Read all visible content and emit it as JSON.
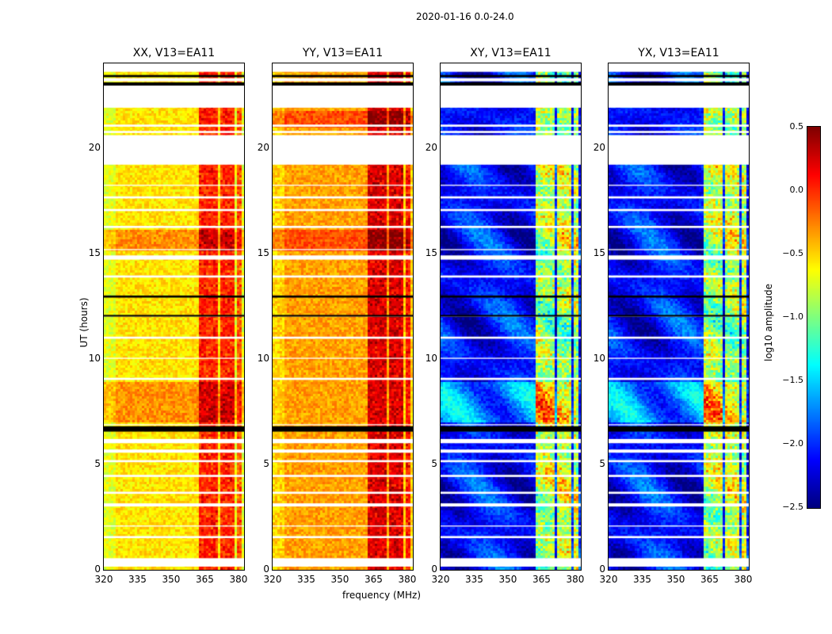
{
  "chart_data": {
    "type": "heatmap",
    "suptitle": "2020-01-16 0.0-24.0",
    "xlabel": "frequency (MHz)",
    "ylabel": "UT (hours)",
    "xlim": [
      320,
      382.5
    ],
    "ylim": [
      0,
      24
    ],
    "xticks": [
      "320",
      "335",
      "350",
      "365",
      "380"
    ],
    "yticks": [
      "0",
      "5",
      "10",
      "15",
      "20"
    ],
    "colorbar": {
      "label": "log10 amplitude",
      "range": [
        -2.5,
        0.5
      ],
      "ticks": [
        "0.5",
        "0.0",
        "−0.5",
        "−1.0",
        "−1.5",
        "−2.0",
        "−2.5"
      ],
      "colormap": "jet"
    },
    "rfi_bands_mhz": [
      [
        362,
        366
      ],
      [
        366.5,
        370
      ],
      [
        371,
        374.5
      ],
      [
        375,
        378
      ],
      [
        378.5,
        381
      ]
    ],
    "white_gaps_hours": [
      [
        0.15,
        0.55
      ],
      [
        1.5,
        1.6
      ],
      [
        2.05,
        2.1
      ],
      [
        3.0,
        3.15
      ],
      [
        3.6,
        3.7
      ],
      [
        4.4,
        4.5
      ],
      [
        5.1,
        5.2
      ],
      [
        5.55,
        5.7
      ],
      [
        6.0,
        6.2
      ],
      [
        6.85,
        6.9
      ],
      [
        9.0,
        9.1
      ],
      [
        10.0,
        10.05
      ],
      [
        10.95,
        11.05
      ],
      [
        12.0,
        12.05
      ],
      [
        13.85,
        13.95
      ],
      [
        14.7,
        14.9
      ],
      [
        15.15,
        15.2
      ],
      [
        16.2,
        16.3
      ],
      [
        17.0,
        17.1
      ],
      [
        17.6,
        17.7
      ],
      [
        18.2,
        18.25
      ],
      [
        19.2,
        20.6
      ],
      [
        20.7,
        20.8
      ],
      [
        21.0,
        21.1
      ],
      [
        21.9,
        23.0
      ],
      [
        23.15,
        23.3
      ],
      [
        23.6,
        24.0
      ]
    ],
    "black_lines_hours": [
      [
        6.55,
        6.8
      ],
      [
        12.9,
        13.0
      ],
      [
        12.0,
        12.08
      ],
      [
        22.95,
        23.1
      ],
      [
        23.35,
        23.45
      ]
    ],
    "panels": [
      {
        "title": "XX, V13=EA11",
        "base": -0.55,
        "band_boost": 0.6,
        "bright_hours": [
          [
            15.2,
            16.2
          ],
          [
            7,
            9
          ]
        ]
      },
      {
        "title": "YY, V13=EA11",
        "base": -0.35,
        "band_boost": 0.6,
        "bright_hours": [
          [
            15.2,
            16.2
          ],
          [
            21,
            21.8
          ]
        ]
      },
      {
        "title": "XY, V13=EA11",
        "base": -2.1,
        "band_boost": 1.3,
        "bright_hours": [
          [
            7,
            9
          ]
        ]
      },
      {
        "title": "YX, V13=EA11",
        "base": -2.1,
        "band_boost": 1.3,
        "bright_hours": [
          [
            7,
            9
          ]
        ]
      }
    ]
  }
}
